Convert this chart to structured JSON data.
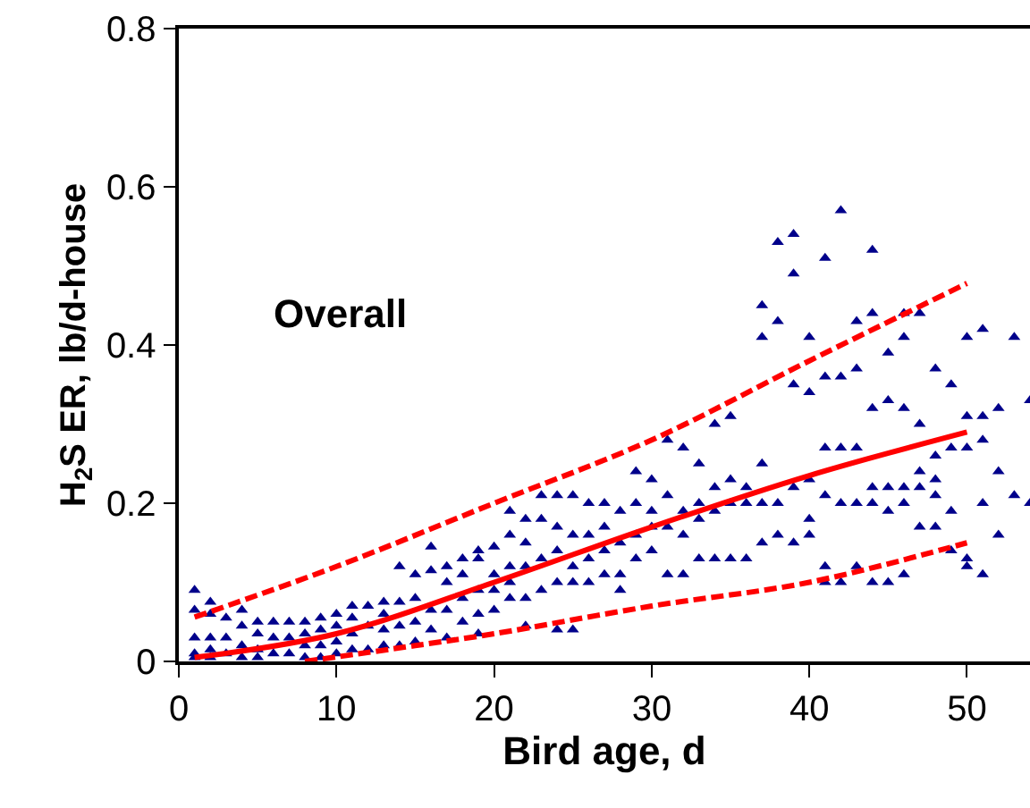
{
  "chart_data": {
    "type": "scatter",
    "xlabel": "Bird age, d",
    "ylabel": "H$_{2}$S ER, lb/d-house",
    "annotations": [
      "Overall"
    ],
    "xlim": [
      0,
      54
    ],
    "xticks": [
      0,
      10,
      20,
      30,
      40,
      50
    ],
    "ylim": [
      0,
      0.8
    ],
    "yticks": [
      0,
      0.2,
      0.4,
      0.6,
      0.8
    ],
    "legend": false,
    "series": [
      {
        "color": "#00008b",
        "marker": "triangle",
        "x": [
          1,
          1,
          1,
          1,
          1,
          2,
          2,
          2,
          2,
          2,
          3,
          3,
          3,
          4,
          4,
          4,
          4,
          5,
          5,
          5,
          5,
          6,
          6,
          6,
          7,
          7,
          7,
          8,
          8,
          8,
          8,
          9,
          9,
          9,
          9,
          10,
          10,
          10,
          10,
          11,
          11,
          11,
          11,
          12,
          12,
          12,
          13,
          13,
          13,
          13,
          14,
          14,
          14,
          14,
          15,
          15,
          15,
          15,
          16,
          16,
          16,
          16,
          17,
          17,
          17,
          17,
          18,
          18,
          18,
          18,
          19,
          19,
          19,
          19,
          19,
          20,
          20,
          20,
          20,
          21,
          21,
          21,
          21,
          21,
          22,
          22,
          22,
          22,
          22,
          23,
          23,
          23,
          23,
          24,
          24,
          24,
          24,
          24,
          25,
          25,
          25,
          25,
          25,
          26,
          26,
          26,
          26,
          27,
          27,
          27,
          27,
          28,
          28,
          28,
          28,
          29,
          29,
          29,
          29,
          30,
          30,
          30,
          30,
          31,
          31,
          31,
          31,
          32,
          32,
          32,
          32,
          33,
          33,
          33,
          33,
          34,
          34,
          34,
          34,
          35,
          35,
          35,
          35,
          36,
          36,
          36,
          37,
          37,
          37,
          37,
          37,
          38,
          38,
          38,
          38,
          39,
          39,
          39,
          39,
          39,
          40,
          40,
          40,
          40,
          40,
          41,
          41,
          41,
          41,
          41,
          41,
          42,
          42,
          42,
          42,
          42,
          43,
          43,
          43,
          43,
          43,
          44,
          44,
          44,
          44,
          44,
          44,
          45,
          45,
          45,
          45,
          45,
          46,
          46,
          46,
          46,
          46,
          46,
          47,
          47,
          47,
          47,
          47,
          48,
          48,
          48,
          48,
          48,
          49,
          49,
          49,
          49,
          50,
          50,
          50,
          50,
          50,
          51,
          51,
          51,
          51,
          51,
          52,
          52,
          52,
          53,
          53,
          54,
          54
        ],
        "values": [
          0.09,
          0.065,
          0.03,
          0.01,
          0.005,
          0.075,
          0.06,
          0.03,
          0.015,
          0.005,
          0.055,
          0.03,
          0.01,
          0.065,
          0.045,
          0.02,
          0.005,
          0.05,
          0.035,
          0.015,
          0.005,
          0.05,
          0.03,
          0.01,
          0.05,
          0.03,
          0.01,
          0.05,
          0.035,
          0.02,
          0.005,
          0.055,
          0.04,
          0.02,
          0.005,
          0.06,
          0.045,
          0.025,
          0.01,
          0.07,
          0.055,
          0.035,
          0.015,
          0.07,
          0.045,
          0.015,
          0.075,
          0.06,
          0.04,
          0.02,
          0.12,
          0.075,
          0.045,
          0.02,
          0.11,
          0.08,
          0.05,
          0.025,
          0.145,
          0.115,
          0.065,
          0.04,
          0.12,
          0.1,
          0.065,
          0.03,
          0.13,
          0.11,
          0.08,
          0.05,
          0.14,
          0.13,
          0.09,
          0.06,
          0.035,
          0.145,
          0.11,
          0.09,
          0.065,
          0.19,
          0.16,
          0.12,
          0.1,
          0.08,
          0.18,
          0.15,
          0.12,
          0.08,
          0.045,
          0.21,
          0.18,
          0.13,
          0.09,
          0.21,
          0.17,
          0.14,
          0.1,
          0.04,
          0.21,
          0.16,
          0.12,
          0.1,
          0.04,
          0.2,
          0.16,
          0.13,
          0.1,
          0.2,
          0.17,
          0.14,
          0.11,
          0.19,
          0.15,
          0.11,
          0.09,
          0.24,
          0.2,
          0.16,
          0.13,
          0.23,
          0.19,
          0.17,
          0.14,
          0.28,
          0.21,
          0.17,
          0.11,
          0.27,
          0.19,
          0.16,
          0.11,
          0.25,
          0.2,
          0.18,
          0.13,
          0.3,
          0.22,
          0.19,
          0.13,
          0.31,
          0.23,
          0.2,
          0.13,
          0.22,
          0.2,
          0.13,
          0.45,
          0.41,
          0.25,
          0.2,
          0.15,
          0.53,
          0.43,
          0.2,
          0.16,
          0.54,
          0.49,
          0.35,
          0.22,
          0.15,
          0.41,
          0.34,
          0.23,
          0.18,
          0.16,
          0.51,
          0.36,
          0.27,
          0.21,
          0.12,
          0.1,
          0.57,
          0.36,
          0.27,
          0.2,
          0.1,
          0.43,
          0.37,
          0.27,
          0.2,
          0.12,
          0.52,
          0.44,
          0.32,
          0.22,
          0.2,
          0.1,
          0.39,
          0.33,
          0.22,
          0.19,
          0.1,
          0.44,
          0.41,
          0.32,
          0.22,
          0.2,
          0.11,
          0.44,
          0.3,
          0.24,
          0.22,
          0.17,
          0.37,
          0.26,
          0.23,
          0.21,
          0.17,
          0.35,
          0.27,
          0.19,
          0.14,
          0.41,
          0.31,
          0.27,
          0.13,
          0.12,
          0.42,
          0.31,
          0.28,
          0.2,
          0.11,
          0.32,
          0.24,
          0.16,
          0.41,
          0.21,
          0.33,
          0.2
        ]
      },
      {
        "type": "line",
        "color": "#ff0000",
        "line_style": "solid",
        "x": [
          1,
          10,
          20,
          30,
          40,
          50
        ],
        "values": [
          0.005,
          0.035,
          0.1,
          0.17,
          0.235,
          0.29
        ]
      },
      {
        "type": "line",
        "color": "#ff0000",
        "line_style": "dashed",
        "x": [
          1,
          10,
          20,
          30,
          40,
          50
        ],
        "values": [
          0.056,
          0.12,
          0.2,
          0.28,
          0.38,
          0.478
        ]
      },
      {
        "type": "line",
        "color": "#ff0000",
        "line_style": "dashed",
        "x": [
          8,
          15,
          20,
          30,
          40,
          50
        ],
        "values": [
          0,
          0.02,
          0.035,
          0.07,
          0.1,
          0.15
        ]
      }
    ]
  }
}
